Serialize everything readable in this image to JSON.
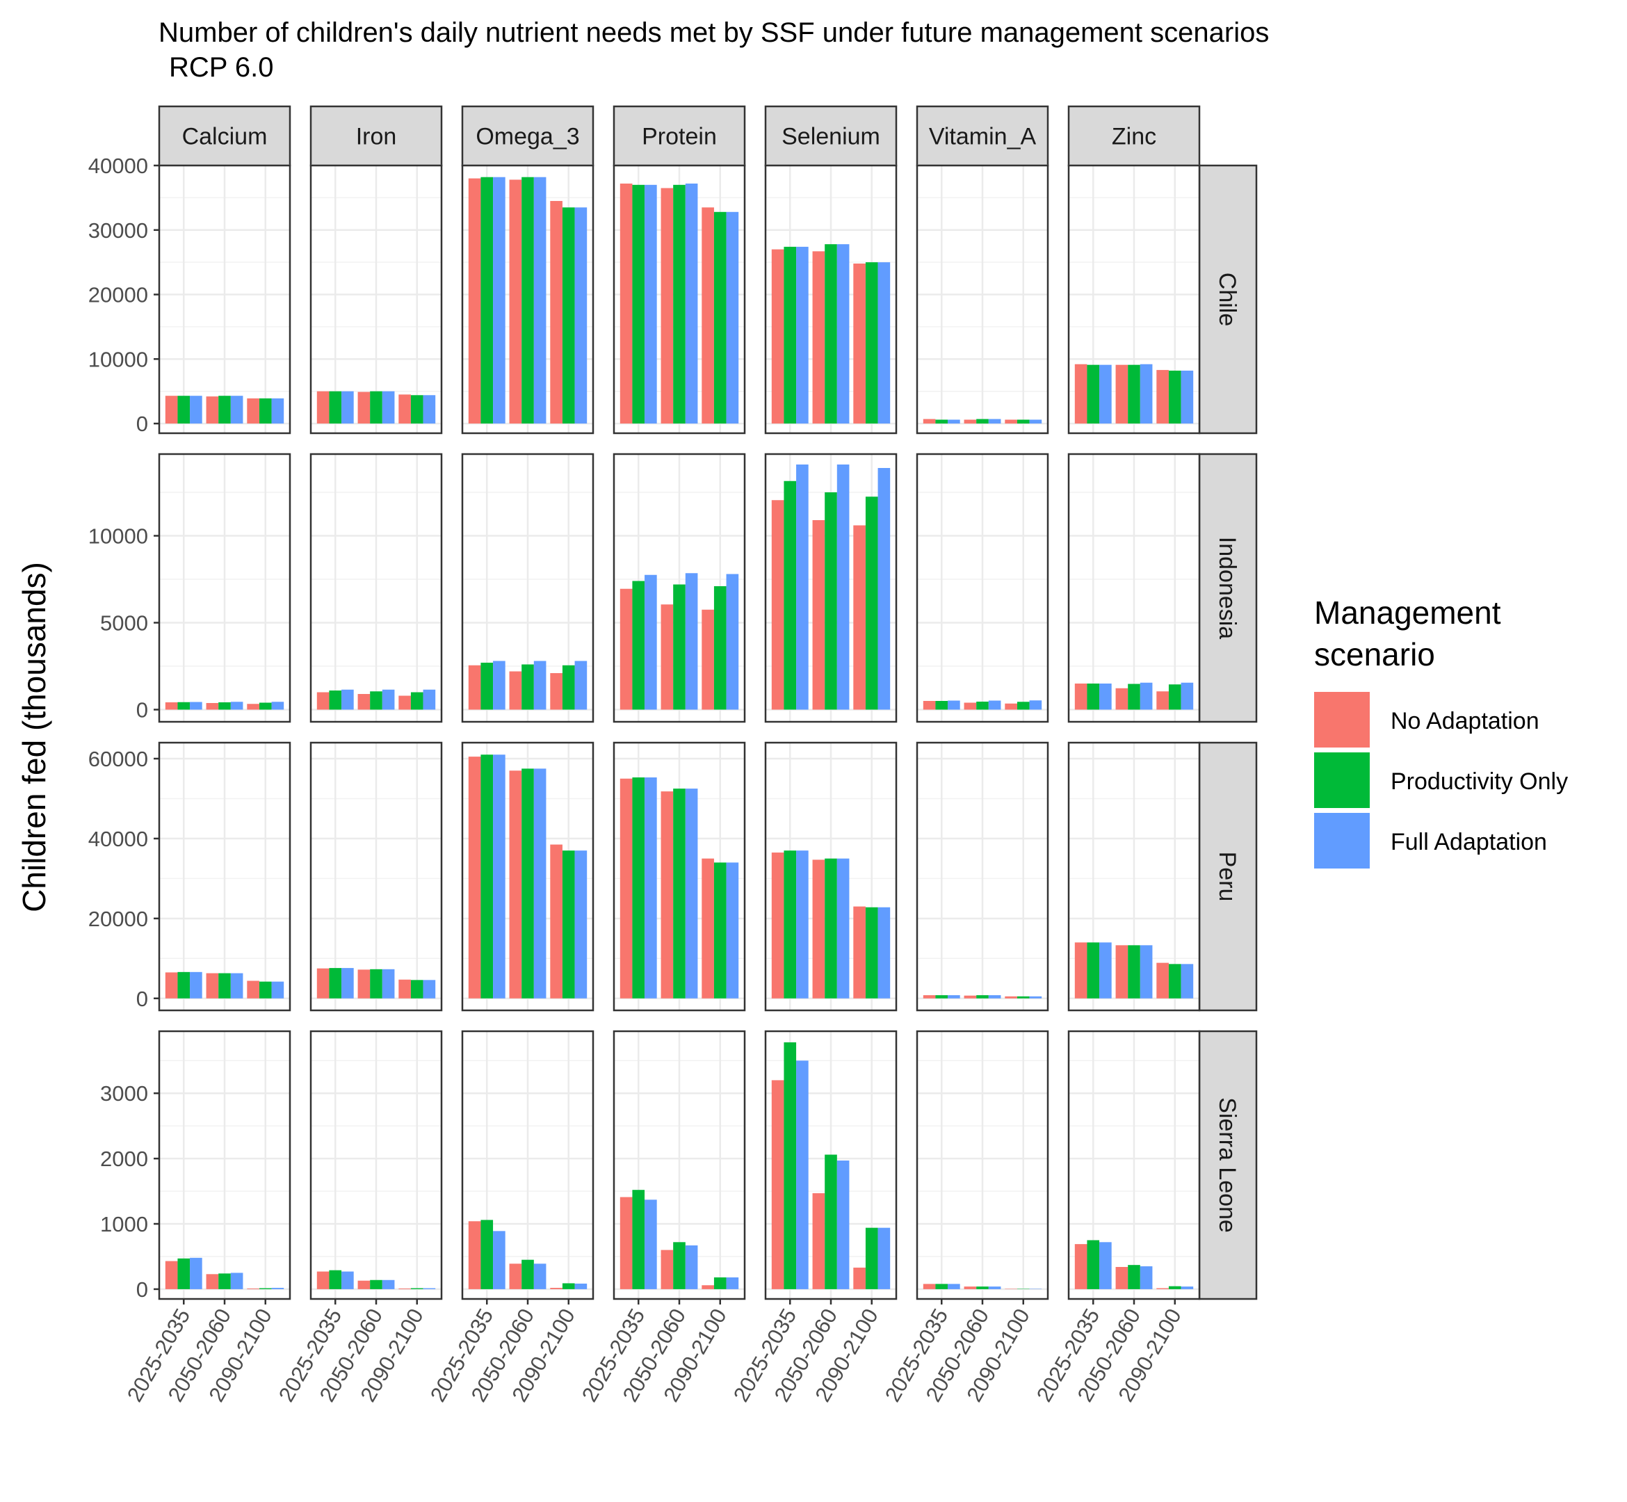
{
  "chart_data": {
    "type": "bar",
    "title": "Number of children's daily nutrient needs met by SSF under future management scenarios",
    "subtitle": "RCP 6.0",
    "ylabel": "Children fed (thousands)",
    "xlabel": "",
    "categories": [
      "2025-2035",
      "2050-2060",
      "2090-2100"
    ],
    "nutrients": [
      "Calcium",
      "Iron",
      "Omega_3",
      "Protein",
      "Selenium",
      "Vitamin_A",
      "Zinc"
    ],
    "grid": true,
    "legend": {
      "title": "Management scenario",
      "title_lines": [
        "Management",
        "scenario"
      ],
      "placement": "right",
      "entries": [
        {
          "name": "No Adaptation",
          "color": "#F8766D"
        },
        {
          "name": "Productivity Only",
          "color": "#00BA38"
        },
        {
          "name": "Full Adaptation",
          "color": "#619CFF"
        }
      ]
    },
    "rows": [
      {
        "country": "Chile",
        "ylim": [
          -1500,
          40000
        ],
        "yticks": [
          0,
          10000,
          20000,
          30000,
          40000
        ],
        "values": {
          "Calcium": [
            [
              4300,
              4300,
              4300
            ],
            [
              4200,
              4300,
              4300
            ],
            [
              3900,
              3900,
              3900
            ]
          ],
          "Iron": [
            [
              5000,
              5000,
              5000
            ],
            [
              4900,
              5000,
              5000
            ],
            [
              4500,
              4400,
              4400
            ]
          ],
          "Omega_3": [
            [
              38000,
              38200,
              38200
            ],
            [
              37800,
              38200,
              38200
            ],
            [
              34500,
              33500,
              33500
            ]
          ],
          "Protein": [
            [
              37200,
              37000,
              37000
            ],
            [
              36500,
              37000,
              37200
            ],
            [
              33500,
              32800,
              32800
            ]
          ],
          "Selenium": [
            [
              27000,
              27400,
              27400
            ],
            [
              26700,
              27800,
              27800
            ],
            [
              24800,
              25000,
              25000
            ]
          ],
          "Vitamin_A": [
            [
              700,
              600,
              600
            ],
            [
              600,
              700,
              700
            ],
            [
              600,
              600,
              600
            ]
          ],
          "Zinc": [
            [
              9200,
              9100,
              9100
            ],
            [
              9100,
              9100,
              9200
            ],
            [
              8300,
              8200,
              8200
            ]
          ]
        }
      },
      {
        "country": "Indonesia",
        "ylim": [
          -700,
          14700
        ],
        "yticks": [
          0,
          5000,
          10000
        ],
        "values": {
          "Calcium": [
            [
              420,
              430,
              440
            ],
            [
              380,
              420,
              450
            ],
            [
              330,
              400,
              450
            ]
          ],
          "Iron": [
            [
              1000,
              1100,
              1150
            ],
            [
              900,
              1050,
              1150
            ],
            [
              800,
              1000,
              1150
            ]
          ],
          "Omega_3": [
            [
              2550,
              2700,
              2800
            ],
            [
              2200,
              2600,
              2800
            ],
            [
              2100,
              2550,
              2800
            ]
          ],
          "Protein": [
            [
              6950,
              7400,
              7750
            ],
            [
              6050,
              7200,
              7850
            ],
            [
              5750,
              7100,
              7800
            ]
          ],
          "Selenium": [
            [
              12050,
              13150,
              14100
            ],
            [
              10900,
              12500,
              14100
            ],
            [
              10600,
              12250,
              13900
            ]
          ],
          "Vitamin_A": [
            [
              500,
              500,
              520
            ],
            [
              400,
              460,
              520
            ],
            [
              350,
              450,
              530
            ]
          ],
          "Zinc": [
            [
              1500,
              1500,
              1500
            ],
            [
              1230,
              1480,
              1550
            ],
            [
              1050,
              1450,
              1550
            ]
          ]
        }
      },
      {
        "country": "Peru",
        "ylim": [
          -3000,
          64000
        ],
        "yticks": [
          0,
          20000,
          40000,
          60000
        ],
        "values": {
          "Calcium": [
            [
              6500,
              6600,
              6600
            ],
            [
              6300,
              6300,
              6300
            ],
            [
              4400,
              4200,
              4200
            ]
          ],
          "Iron": [
            [
              7500,
              7600,
              7600
            ],
            [
              7200,
              7300,
              7300
            ],
            [
              4700,
              4600,
              4600
            ]
          ],
          "Omega_3": [
            [
              60500,
              61000,
              61000
            ],
            [
              57000,
              57500,
              57500
            ],
            [
              38500,
              37000,
              37000
            ]
          ],
          "Protein": [
            [
              55000,
              55300,
              55300
            ],
            [
              51800,
              52500,
              52500
            ],
            [
              35000,
              34000,
              34000
            ]
          ],
          "Selenium": [
            [
              36500,
              37000,
              37000
            ],
            [
              34700,
              35000,
              35000
            ],
            [
              23000,
              22800,
              22800
            ]
          ],
          "Vitamin_A": [
            [
              800,
              800,
              800
            ],
            [
              700,
              800,
              800
            ],
            [
              500,
              500,
              500
            ]
          ],
          "Zinc": [
            [
              14000,
              14000,
              14000
            ],
            [
              13300,
              13300,
              13300
            ],
            [
              8900,
              8600,
              8600
            ]
          ]
        }
      },
      {
        "country": "Sierra Leone",
        "ylim": [
          -150,
          3950
        ],
        "yticks": [
          0,
          1000,
          2000,
          3000
        ],
        "values": {
          "Calcium": [
            [
              430,
              470,
              480
            ],
            [
              230,
              240,
              250
            ],
            [
              10,
              15,
              20
            ]
          ],
          "Iron": [
            [
              270,
              290,
              270
            ],
            [
              130,
              140,
              140
            ],
            [
              10,
              15,
              15
            ]
          ],
          "Omega_3": [
            [
              1040,
              1060,
              890
            ],
            [
              390,
              450,
              390
            ],
            [
              20,
              90,
              85
            ]
          ],
          "Protein": [
            [
              1410,
              1520,
              1370
            ],
            [
              600,
              720,
              670
            ],
            [
              60,
              180,
              180
            ]
          ],
          "Selenium": [
            [
              3200,
              3780,
              3500
            ],
            [
              1470,
              2060,
              1970
            ],
            [
              330,
              940,
              940
            ]
          ],
          "Vitamin_A": [
            [
              80,
              80,
              80
            ],
            [
              40,
              40,
              40
            ],
            [
              5,
              5,
              5
            ]
          ],
          "Zinc": [
            [
              690,
              750,
              720
            ],
            [
              340,
              370,
              350
            ],
            [
              15,
              45,
              40
            ]
          ]
        }
      }
    ]
  }
}
